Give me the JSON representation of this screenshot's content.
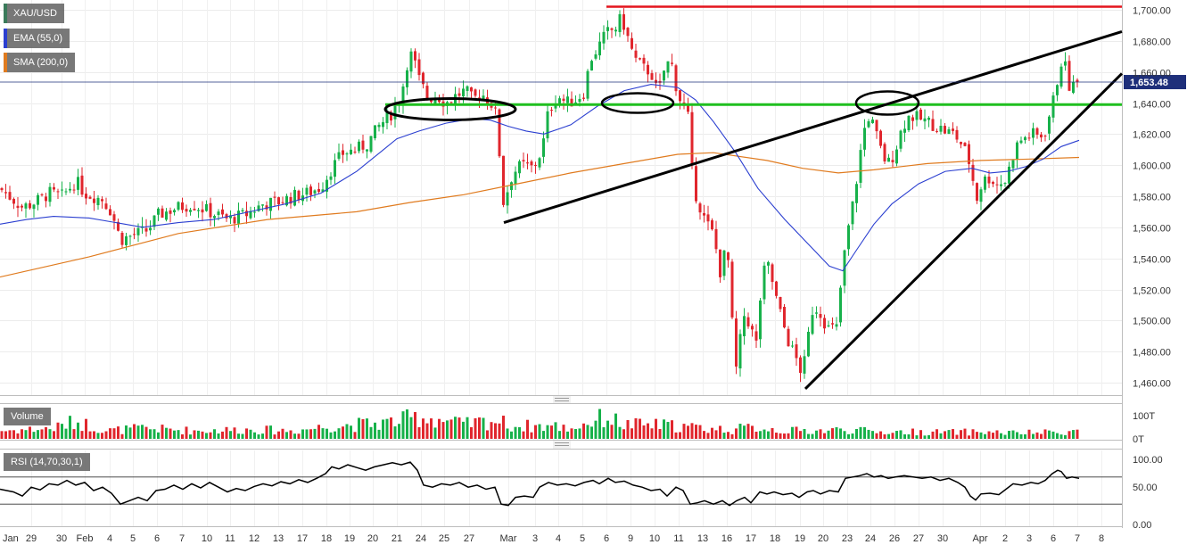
{
  "chart_data": {
    "type": "candlestick",
    "symbol": "XAU/USD",
    "indicators": [
      {
        "name": "EMA (55,0)",
        "color": "#2b3fd0"
      },
      {
        "name": "SMA (200,0)",
        "color": "#e07b1f"
      }
    ],
    "last_price": "1,653.48",
    "price_axis": {
      "range": [
        1450,
        1705
      ],
      "ticks": [
        "1,460.00",
        "1,480.00",
        "1,500.00",
        "1,520.00",
        "1,540.00",
        "1,560.00",
        "1,580.00",
        "1,600.00",
        "1,620.00",
        "1,640.00",
        "1,660.00",
        "1,680.00",
        "1,700.00"
      ],
      "tick_values": [
        1460,
        1480,
        1500,
        1520,
        1540,
        1560,
        1580,
        1600,
        1620,
        1640,
        1660,
        1680,
        1700
      ]
    },
    "x_axis": {
      "labels": [
        "Jan",
        "29",
        "30",
        "Feb",
        "4",
        "5",
        "6",
        "7",
        "10",
        "11",
        "12",
        "13",
        "17",
        "18",
        "19",
        "20",
        "21",
        "24",
        "25",
        "27",
        "Mar",
        "3",
        "4",
        "5",
        "6",
        "9",
        "10",
        "11",
        "13",
        "16",
        "17",
        "18",
        "19",
        "20",
        "23",
        "24",
        "26",
        "27",
        "30",
        "Apr",
        "2",
        "3",
        "6",
        "7",
        "8"
      ],
      "label_x": [
        3,
        35,
        69,
        95,
        123,
        149,
        176,
        204,
        232,
        258,
        285,
        312,
        339,
        366,
        392,
        418,
        445,
        472,
        498,
        526,
        570,
        600,
        626,
        653,
        680,
        707,
        734,
        761,
        788,
        815,
        842,
        869,
        897,
        923,
        950,
        976,
        1003,
        1030,
        1057,
        1099,
        1127,
        1154,
        1181,
        1208,
        1235
      ]
    },
    "levels": [
      {
        "name": "resistance",
        "value": 1702,
        "color": "#e4141d"
      },
      {
        "name": "support",
        "value": 1639,
        "color": "#1fbf1f"
      }
    ],
    "trendlines": [
      {
        "from": [
          "Feb 28",
          1563
        ],
        "to": [
          "Apr 8",
          1686
        ]
      },
      {
        "from": [
          "Mar 19",
          1456
        ],
        "to": [
          "Apr 8",
          1659
        ]
      }
    ],
    "volume": {
      "title": "Volume",
      "ticks": [
        "100T",
        "0T"
      ]
    },
    "rsi": {
      "title": "RSI (14,70,30,1)",
      "ticks": [
        "100.00",
        "50.00",
        "0.00"
      ],
      "tick_values": [
        100,
        50,
        0
      ],
      "levels": [
        70,
        30
      ]
    },
    "price_path": [
      [
        0,
        1585
      ],
      [
        25,
        1573
      ],
      [
        35,
        1575
      ],
      [
        45,
        1578
      ],
      [
        55,
        1582
      ],
      [
        70,
        1580
      ],
      [
        85,
        1590
      ],
      [
        95,
        1582
      ],
      [
        115,
        1578
      ],
      [
        125,
        1570
      ],
      [
        135,
        1552
      ],
      [
        150,
        1555
      ],
      [
        165,
        1558
      ],
      [
        178,
        1568
      ],
      [
        195,
        1572
      ],
      [
        215,
        1575
      ],
      [
        235,
        1570
      ],
      [
        255,
        1565
      ],
      [
        275,
        1568
      ],
      [
        295,
        1575
      ],
      [
        310,
        1576
      ],
      [
        330,
        1580
      ],
      [
        345,
        1582
      ],
      [
        360,
        1586
      ],
      [
        372,
        1598
      ],
      [
        385,
        1608
      ],
      [
        400,
        1610
      ],
      [
        412,
        1614
      ],
      [
        425,
        1625
      ],
      [
        440,
        1634
      ],
      [
        450,
        1645
      ],
      [
        456,
        1665
      ],
      [
        462,
        1672
      ],
      [
        470,
        1655
      ],
      [
        480,
        1643
      ],
      [
        490,
        1645
      ],
      [
        500,
        1640
      ],
      [
        512,
        1645
      ],
      [
        522,
        1648
      ],
      [
        530,
        1642
      ],
      [
        540,
        1646
      ],
      [
        550,
        1641
      ],
      [
        558,
        1630
      ],
      [
        563,
        1574
      ],
      [
        568,
        1582
      ],
      [
        575,
        1595
      ],
      [
        585,
        1600
      ],
      [
        598,
        1598
      ],
      [
        608,
        1610
      ],
      [
        615,
        1635
      ],
      [
        625,
        1645
      ],
      [
        635,
        1640
      ],
      [
        645,
        1642
      ],
      [
        655,
        1647
      ],
      [
        662,
        1668
      ],
      [
        672,
        1677
      ],
      [
        680,
        1685
      ],
      [
        690,
        1688
      ],
      [
        697,
        1695
      ],
      [
        705,
        1680
      ],
      [
        712,
        1668
      ],
      [
        722,
        1662
      ],
      [
        730,
        1660
      ],
      [
        738,
        1645
      ],
      [
        745,
        1662
      ],
      [
        752,
        1668
      ],
      [
        760,
        1646
      ],
      [
        766,
        1638
      ],
      [
        772,
        1630
      ],
      [
        777,
        1588
      ],
      [
        782,
        1578
      ],
      [
        790,
        1565
      ],
      [
        800,
        1555
      ],
      [
        808,
        1530
      ],
      [
        815,
        1550
      ],
      [
        820,
        1510
      ],
      [
        824,
        1462
      ],
      [
        828,
        1480
      ],
      [
        835,
        1505
      ],
      [
        840,
        1498
      ],
      [
        848,
        1485
      ],
      [
        855,
        1530
      ],
      [
        862,
        1535
      ],
      [
        870,
        1515
      ],
      [
        877,
        1500
      ],
      [
        885,
        1485
      ],
      [
        893,
        1475
      ],
      [
        900,
        1465
      ],
      [
        905,
        1485
      ],
      [
        912,
        1510
      ],
      [
        920,
        1505
      ],
      [
        928,
        1495
      ],
      [
        938,
        1495
      ],
      [
        945,
        1535
      ],
      [
        952,
        1562
      ],
      [
        958,
        1580
      ],
      [
        964,
        1605
      ],
      [
        968,
        1620
      ],
      [
        973,
        1632
      ],
      [
        980,
        1625
      ],
      [
        986,
        1612
      ],
      [
        995,
        1600
      ],
      [
        1003,
        1608
      ],
      [
        1012,
        1625
      ],
      [
        1020,
        1632
      ],
      [
        1030,
        1630
      ],
      [
        1040,
        1628
      ],
      [
        1050,
        1625
      ],
      [
        1060,
        1622
      ],
      [
        1070,
        1620
      ],
      [
        1080,
        1612
      ],
      [
        1088,
        1600
      ],
      [
        1095,
        1578
      ],
      [
        1102,
        1590
      ],
      [
        1110,
        1592
      ],
      [
        1118,
        1588
      ],
      [
        1128,
        1590
      ],
      [
        1135,
        1605
      ],
      [
        1142,
        1615
      ],
      [
        1150,
        1618
      ],
      [
        1158,
        1620
      ],
      [
        1166,
        1618
      ],
      [
        1172,
        1622
      ],
      [
        1178,
        1635
      ],
      [
        1184,
        1648
      ],
      [
        1188,
        1665
      ],
      [
        1192,
        1668
      ],
      [
        1196,
        1660
      ],
      [
        1200,
        1648
      ],
      [
        1205,
        1652
      ],
      [
        1210,
        1653
      ]
    ],
    "ema_path": [
      [
        0,
        1562
      ],
      [
        30,
        1565
      ],
      [
        60,
        1567
      ],
      [
        100,
        1566
      ],
      [
        130,
        1563
      ],
      [
        160,
        1560
      ],
      [
        200,
        1563
      ],
      [
        240,
        1565
      ],
      [
        280,
        1570
      ],
      [
        320,
        1575
      ],
      [
        360,
        1582
      ],
      [
        400,
        1596
      ],
      [
        430,
        1610
      ],
      [
        445,
        1617
      ],
      [
        470,
        1622
      ],
      [
        500,
        1627
      ],
      [
        530,
        1630
      ],
      [
        550,
        1629
      ],
      [
        570,
        1625
      ],
      [
        590,
        1622
      ],
      [
        610,
        1620
      ],
      [
        640,
        1626
      ],
      [
        670,
        1638
      ],
      [
        700,
        1648
      ],
      [
        730,
        1652
      ],
      [
        760,
        1650
      ],
      [
        780,
        1642
      ],
      [
        800,
        1628
      ],
      [
        825,
        1608
      ],
      [
        850,
        1585
      ],
      [
        880,
        1565
      ],
      [
        910,
        1547
      ],
      [
        930,
        1535
      ],
      [
        945,
        1532
      ],
      [
        960,
        1545
      ],
      [
        980,
        1562
      ],
      [
        1000,
        1575
      ],
      [
        1030,
        1588
      ],
      [
        1060,
        1596
      ],
      [
        1090,
        1598
      ],
      [
        1110,
        1595
      ],
      [
        1130,
        1596
      ],
      [
        1150,
        1599
      ],
      [
        1170,
        1604
      ],
      [
        1190,
        1612
      ],
      [
        1210,
        1616
      ]
    ],
    "sma_path": [
      [
        0,
        1528
      ],
      [
        100,
        1541
      ],
      [
        200,
        1556
      ],
      [
        300,
        1565
      ],
      [
        400,
        1570
      ],
      [
        460,
        1576
      ],
      [
        520,
        1581
      ],
      [
        580,
        1588
      ],
      [
        640,
        1595
      ],
      [
        700,
        1601
      ],
      [
        760,
        1607
      ],
      [
        800,
        1608
      ],
      [
        860,
        1603
      ],
      [
        900,
        1598
      ],
      [
        940,
        1595
      ],
      [
        980,
        1597
      ],
      [
        1040,
        1601
      ],
      [
        1100,
        1603
      ],
      [
        1160,
        1604
      ],
      [
        1210,
        1605
      ]
    ],
    "rsi_path": [
      [
        0,
        52
      ],
      [
        15,
        48
      ],
      [
        25,
        42
      ],
      [
        35,
        55
      ],
      [
        45,
        51
      ],
      [
        55,
        60
      ],
      [
        65,
        58
      ],
      [
        75,
        65
      ],
      [
        85,
        58
      ],
      [
        95,
        62
      ],
      [
        105,
        50
      ],
      [
        115,
        55
      ],
      [
        125,
        46
      ],
      [
        135,
        30
      ],
      [
        145,
        35
      ],
      [
        155,
        40
      ],
      [
        165,
        35
      ],
      [
        175,
        50
      ],
      [
        185,
        52
      ],
      [
        195,
        58
      ],
      [
        205,
        52
      ],
      [
        215,
        60
      ],
      [
        225,
        54
      ],
      [
        235,
        62
      ],
      [
        245,
        55
      ],
      [
        255,
        48
      ],
      [
        265,
        53
      ],
      [
        275,
        50
      ],
      [
        285,
        56
      ],
      [
        295,
        60
      ],
      [
        305,
        57
      ],
      [
        315,
        63
      ],
      [
        325,
        60
      ],
      [
        335,
        66
      ],
      [
        345,
        62
      ],
      [
        355,
        68
      ],
      [
        365,
        75
      ],
      [
        372,
        85
      ],
      [
        380,
        82
      ],
      [
        390,
        88
      ],
      [
        400,
        84
      ],
      [
        410,
        80
      ],
      [
        420,
        85
      ],
      [
        430,
        88
      ],
      [
        440,
        91
      ],
      [
        450,
        88
      ],
      [
        460,
        92
      ],
      [
        468,
        80
      ],
      [
        475,
        58
      ],
      [
        485,
        55
      ],
      [
        495,
        60
      ],
      [
        505,
        58
      ],
      [
        515,
        62
      ],
      [
        525,
        55
      ],
      [
        535,
        58
      ],
      [
        545,
        52
      ],
      [
        555,
        55
      ],
      [
        562,
        30
      ],
      [
        570,
        28
      ],
      [
        578,
        40
      ],
      [
        588,
        42
      ],
      [
        598,
        40
      ],
      [
        605,
        55
      ],
      [
        615,
        62
      ],
      [
        625,
        58
      ],
      [
        635,
        60
      ],
      [
        645,
        57
      ],
      [
        655,
        62
      ],
      [
        665,
        65
      ],
      [
        672,
        60
      ],
      [
        682,
        68
      ],
      [
        690,
        62
      ],
      [
        700,
        64
      ],
      [
        710,
        58
      ],
      [
        720,
        55
      ],
      [
        730,
        50
      ],
      [
        740,
        52
      ],
      [
        748,
        42
      ],
      [
        758,
        55
      ],
      [
        766,
        50
      ],
      [
        774,
        30
      ],
      [
        782,
        32
      ],
      [
        790,
        35
      ],
      [
        800,
        30
      ],
      [
        810,
        35
      ],
      [
        818,
        28
      ],
      [
        826,
        35
      ],
      [
        835,
        40
      ],
      [
        842,
        32
      ],
      [
        852,
        48
      ],
      [
        860,
        45
      ],
      [
        868,
        48
      ],
      [
        878,
        44
      ],
      [
        888,
        46
      ],
      [
        896,
        40
      ],
      [
        905,
        48
      ],
      [
        912,
        50
      ],
      [
        920,
        45
      ],
      [
        930,
        50
      ],
      [
        940,
        48
      ],
      [
        948,
        68
      ],
      [
        956,
        70
      ],
      [
        964,
        72
      ],
      [
        972,
        75
      ],
      [
        980,
        70
      ],
      [
        988,
        72
      ],
      [
        996,
        68
      ],
      [
        1004,
        70
      ],
      [
        1014,
        72
      ],
      [
        1024,
        70
      ],
      [
        1034,
        68
      ],
      [
        1044,
        70
      ],
      [
        1054,
        65
      ],
      [
        1064,
        68
      ],
      [
        1074,
        62
      ],
      [
        1082,
        55
      ],
      [
        1088,
        42
      ],
      [
        1094,
        36
      ],
      [
        1100,
        45
      ],
      [
        1110,
        46
      ],
      [
        1120,
        44
      ],
      [
        1128,
        52
      ],
      [
        1136,
        60
      ],
      [
        1146,
        58
      ],
      [
        1156,
        62
      ],
      [
        1164,
        60
      ],
      [
        1172,
        65
      ],
      [
        1180,
        75
      ],
      [
        1186,
        80
      ],
      [
        1190,
        78
      ],
      [
        1196,
        68
      ],
      [
        1202,
        70
      ],
      [
        1210,
        68
      ]
    ],
    "volume_profile": [
      [
        0,
        0.35
      ],
      [
        60,
        0.45
      ],
      [
        85,
        0.75
      ],
      [
        120,
        0.35
      ],
      [
        160,
        0.45
      ],
      [
        220,
        0.35
      ],
      [
        280,
        0.4
      ],
      [
        330,
        0.35
      ],
      [
        370,
        0.55
      ],
      [
        420,
        0.65
      ],
      [
        445,
        0.75
      ],
      [
        470,
        0.95
      ],
      [
        492,
        0.85
      ],
      [
        520,
        0.6
      ],
      [
        555,
        0.8
      ],
      [
        575,
        0.55
      ],
      [
        620,
        0.55
      ],
      [
        640,
        0.45
      ],
      [
        660,
        0.7
      ],
      [
        680,
        0.95
      ],
      [
        700,
        0.6
      ],
      [
        730,
        0.6
      ],
      [
        760,
        0.55
      ],
      [
        790,
        0.45
      ],
      [
        820,
        0.4
      ],
      [
        850,
        0.5
      ],
      [
        880,
        0.35
      ],
      [
        920,
        0.35
      ],
      [
        950,
        0.4
      ],
      [
        980,
        0.3
      ],
      [
        1020,
        0.3
      ],
      [
        1060,
        0.28
      ],
      [
        1100,
        0.3
      ],
      [
        1140,
        0.25
      ],
      [
        1180,
        0.28
      ],
      [
        1210,
        0.35
      ]
    ]
  }
}
